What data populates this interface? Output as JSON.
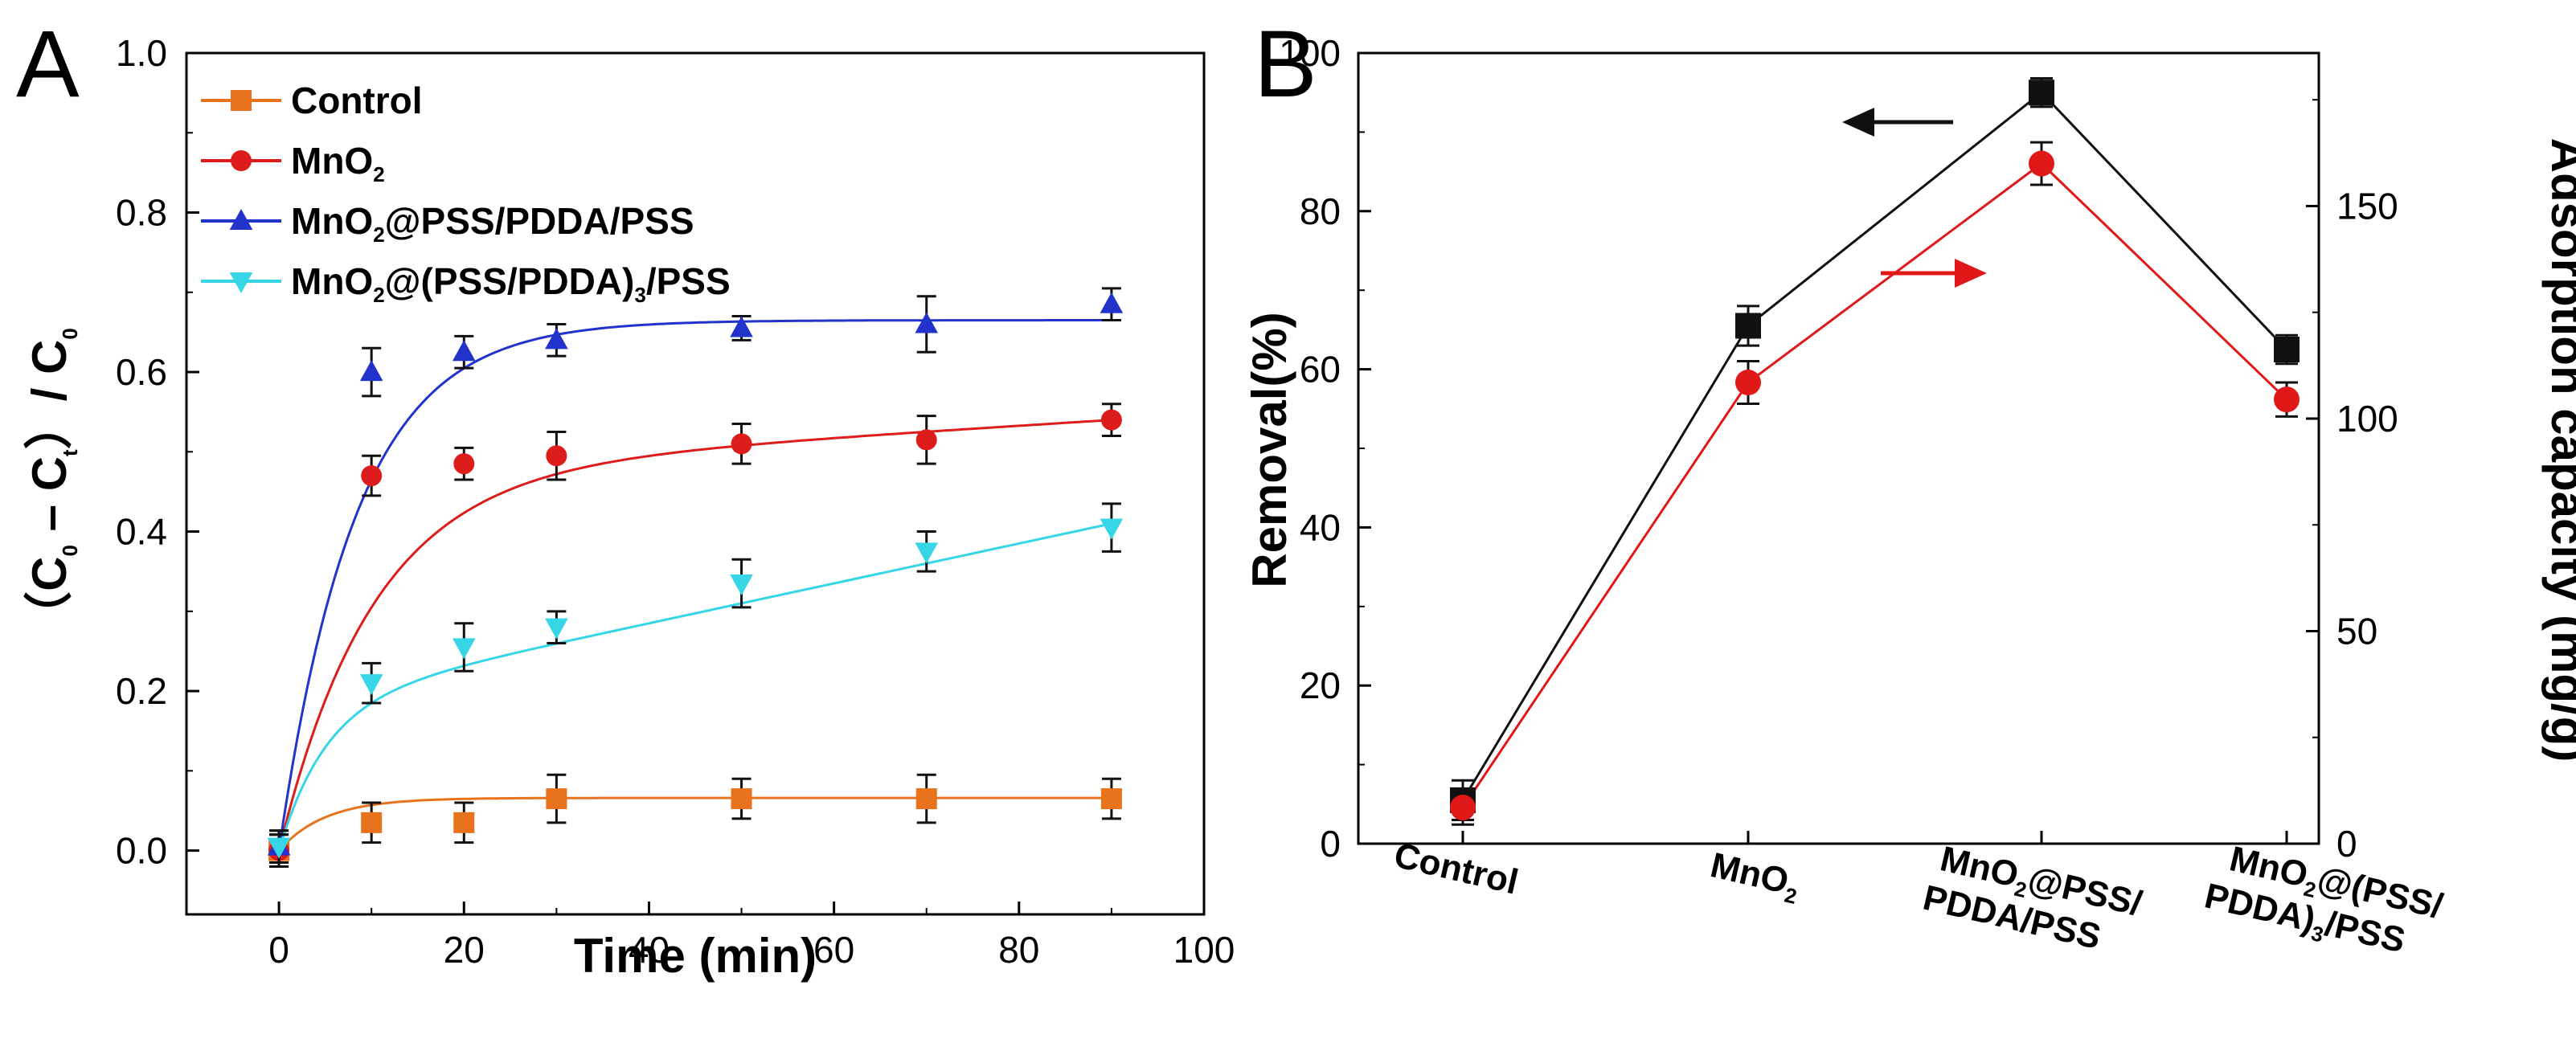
{
  "chart_data": [
    {
      "panel": "A",
      "type": "scatter",
      "xlabel": "Time (min)",
      "ylabel": "（C0 − Ct）/ C0",
      "ylabel_parts": {
        "open": "（C",
        "sub0": "0",
        "minus": " – C",
        "subt": "t",
        "close": "）/ C",
        "sub1": "0"
      },
      "xlim": [
        -10,
        100
      ],
      "ylim": [
        -0.08,
        1.0
      ],
      "xticks": [
        "0",
        "20",
        "40",
        "60",
        "80",
        "100"
      ],
      "xtick_values": [
        0,
        20,
        40,
        60,
        80,
        100
      ],
      "yticks": [
        "0.0",
        "0.2",
        "0.4",
        "0.6",
        "0.8",
        "1.0"
      ],
      "ytick_values": [
        0.0,
        0.2,
        0.4,
        0.6,
        0.8,
        1.0
      ],
      "legend_position": "top-left",
      "series": [
        {
          "name": "Control",
          "legend": {
            "main": "Control"
          },
          "color": "#e8731c",
          "marker": "square",
          "x": [
            0,
            10,
            20,
            30,
            50,
            70,
            90
          ],
          "y": [
            0.0,
            0.035,
            0.035,
            0.065,
            0.065,
            0.065,
            0.065
          ],
          "err": [
            0.02,
            0.025,
            0.025,
            0.03,
            0.025,
            0.03,
            0.025
          ],
          "fit": {
            "a": 0.066,
            "k": 0.2
          }
        },
        {
          "name": "MnO2",
          "legend": {
            "main": "MnO",
            "sub": "2",
            "tail": ""
          },
          "color": "#dd1c1c",
          "marker": "circle",
          "x": [
            0,
            10,
            20,
            30,
            50,
            70,
            90
          ],
          "y": [
            0.0,
            0.47,
            0.485,
            0.495,
            0.51,
            0.515,
            0.54
          ],
          "err": [
            0.02,
            0.025,
            0.02,
            0.03,
            0.025,
            0.03,
            0.02
          ],
          "fit": {
            "a": 0.54,
            "k": 0.1,
            "b": 0.0
          }
        },
        {
          "name": "MnO2@PSS/PDDA/PSS",
          "legend": {
            "main": "MnO",
            "sub": "2",
            "tail": "@PSS/PDDA/PSS"
          },
          "color": "#2233cc",
          "marker": "triangle-up",
          "x": [
            0,
            10,
            20,
            30,
            50,
            70,
            90
          ],
          "y": [
            0.005,
            0.6,
            0.625,
            0.64,
            0.655,
            0.66,
            0.685
          ],
          "err": [
            0.02,
            0.03,
            0.02,
            0.02,
            0.015,
            0.035,
            0.02
          ],
          "fit": {
            "a": 0.665,
            "k": 0.12
          }
        },
        {
          "name": "MnO2@(PSS/PDDA)3/PSS",
          "legend": {
            "main": "MnO",
            "sub": "2",
            "tail": "@(PSS/PDDA)",
            "sub2": "3",
            "tail2": "/PSS"
          },
          "color": "#36d6e6",
          "marker": "triangle-down",
          "x": [
            0,
            10,
            20,
            30,
            50,
            70,
            90
          ],
          "y": [
            0.005,
            0.21,
            0.255,
            0.28,
            0.335,
            0.375,
            0.405
          ],
          "err": [
            0.02,
            0.025,
            0.03,
            0.02,
            0.03,
            0.025,
            0.03
          ],
          "fit": {
            "a": 0.185,
            "k": 0.2,
            "c": 0.0025
          }
        }
      ]
    },
    {
      "panel": "B",
      "type": "line",
      "ylabel": "Removal(%)",
      "y2label": "Adsorption capacity (mg/g)",
      "ylim": [
        0,
        100
      ],
      "y2lim": [
        0,
        186
      ],
      "yticks": [
        "0",
        "20",
        "40",
        "60",
        "80",
        "100"
      ],
      "ytick_values": [
        0,
        20,
        40,
        60,
        80,
        100
      ],
      "y2ticks": [
        "0",
        "50",
        "100",
        "150"
      ],
      "y2tick_values": [
        0,
        50,
        100,
        150
      ],
      "categories": [
        "Control",
        "MnO2",
        "MnO2@PSS/PDDA/PSS",
        "MnO2@(PSS/PDDA)3/PSS"
      ],
      "category_labels": [
        {
          "line1": {
            "main": "Control"
          }
        },
        {
          "line1": {
            "main": "MnO",
            "sub": "2"
          }
        },
        {
          "line1": {
            "main": "MnO",
            "sub": "2",
            "tail": "@PSS/"
          },
          "line2": "PDDA/PSS"
        },
        {
          "line1": {
            "main": "MnO",
            "sub": "2",
            "tail": "@(PSS/"
          },
          "line2": "PDDA)",
          "line2sub": "3",
          "line2tail": "/PSS"
        }
      ],
      "series": [
        {
          "name": "Removal",
          "axis": "left",
          "color": "#111111",
          "marker": "square",
          "values": [
            5.5,
            65.5,
            95,
            62.5
          ],
          "err": [
            2.5,
            2.5,
            1.8,
            1.8
          ]
        },
        {
          "name": "Adsorption capacity",
          "axis": "right",
          "color": "#e01818",
          "marker": "circle",
          "values": [
            8.5,
            108.5,
            160,
            104.5
          ],
          "err": [
            4,
            5,
            5,
            4
          ]
        }
      ],
      "annotations": [
        {
          "type": "arrow",
          "direction": "left",
          "color": "#111111",
          "points_to": "Removal"
        },
        {
          "type": "arrow",
          "direction": "right",
          "color": "#e01818",
          "points_to": "Adsorption capacity"
        }
      ]
    }
  ]
}
